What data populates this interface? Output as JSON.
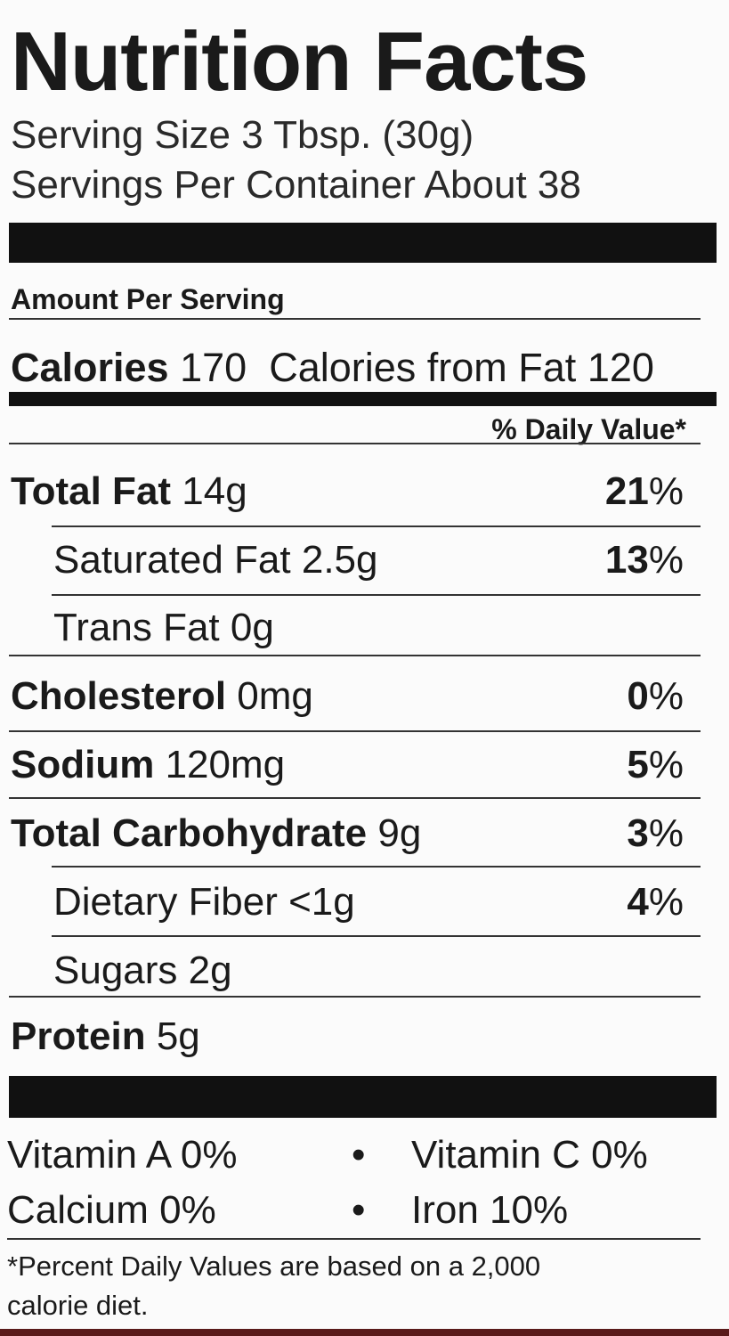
{
  "title": "Nutrition Facts",
  "serving_size": "Serving Size 3 Tbsp.  (30g)",
  "servings_per_container": "Servings Per Container About 38",
  "amount_per_serving": "Amount Per Serving",
  "calories": {
    "label": "Calories",
    "value": "170",
    "from_fat_label": "Calories from Fat",
    "from_fat_value": "120"
  },
  "daily_value_header": "% Daily Value*",
  "nutrients": [
    {
      "label": "Total Fat",
      "amount": "14g",
      "dv": "21",
      "bold": true,
      "indent": false
    },
    {
      "label": "Saturated Fat",
      "amount": "2.5g",
      "dv": "13",
      "bold": false,
      "indent": true
    },
    {
      "label": "Trans Fat",
      "amount": "0g",
      "dv": "",
      "bold": false,
      "indent": true
    },
    {
      "label": "Cholesterol",
      "amount": "0mg",
      "dv": "0",
      "bold": true,
      "indent": false
    },
    {
      "label": "Sodium",
      "amount": "120mg",
      "dv": "5",
      "bold": true,
      "indent": false
    },
    {
      "label": "Total Carbohydrate",
      "amount": "9g",
      "dv": "3",
      "bold": true,
      "indent": false
    },
    {
      "label": "Dietary Fiber",
      "amount": "<1g",
      "dv": "4",
      "bold": false,
      "indent": true
    },
    {
      "label": "Sugars",
      "amount": "2g",
      "dv": "",
      "bold": false,
      "indent": true
    },
    {
      "label": "Protein",
      "amount": "5g",
      "dv": "",
      "bold": true,
      "indent": false
    }
  ],
  "percent_sign": "%",
  "vitamins": [
    {
      "text": "Vitamin A  0%"
    },
    {
      "text": "Vitamin C 0%"
    },
    {
      "text": "Calcium  0%"
    },
    {
      "text": "Iron 10%"
    }
  ],
  "bullet": "•",
  "footnote_line1": "*Percent Daily Values are based on a 2,000",
  "footnote_line2": "calorie diet."
}
